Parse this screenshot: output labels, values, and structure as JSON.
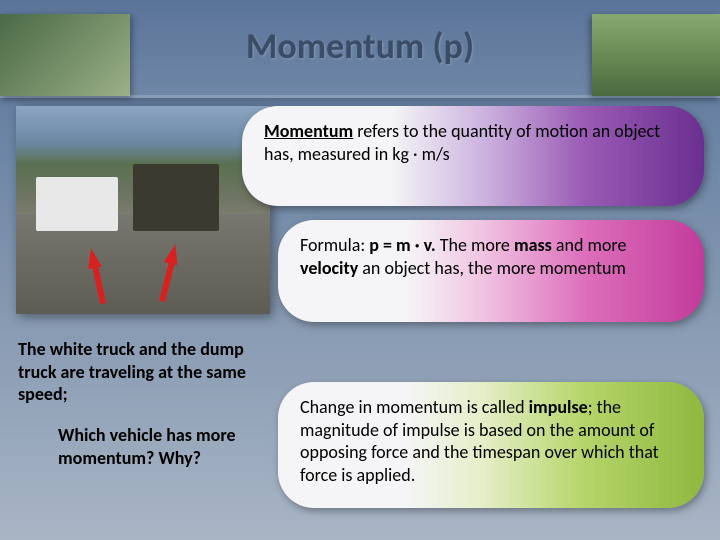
{
  "title": "Momentum (p)",
  "bubble1": {
    "term": "Momentum",
    "rest": " refers to the quantity of motion an object has, measured in kg · m/s"
  },
  "bubble2": {
    "prefix": "Formula: ",
    "formula": "p = m · v.",
    "mid1": " The more ",
    "mass": "mass",
    "mid2": " and more ",
    "velocity": "velocity",
    "rest": " an object has, the more momentum"
  },
  "bubble3": {
    "pre": "Change in momentum is called ",
    "impulse": "impulse",
    "rest": "; the magnitude of impulse is based on the amount of opposing force and the timespan over which that force is applied."
  },
  "caption": {
    "line1": "The white truck and the dump truck are traveling at the same speed;",
    "line2": "Which vehicle has more momentum? Why?"
  },
  "colors": {
    "bg_top": "#5a7499",
    "bg_bottom": "#a8b5c5",
    "bubble1_end": "#6a2f90",
    "bubble2_end": "#c23b9a",
    "bubble3_end": "#8fb83f",
    "arrow": "#d82020"
  },
  "images": {
    "left": "swings-silhouette-photo",
    "right": "mountain-biker-photo",
    "main": "trucks-on-road-photo"
  }
}
